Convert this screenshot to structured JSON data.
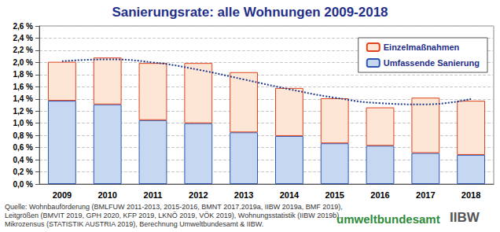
{
  "chart_data": {
    "type": "bar",
    "title": "Sanierungsrate: alle Wohnungen 2009-2018",
    "categories": [
      "2009",
      "2010",
      "2011",
      "2012",
      "2013",
      "2014",
      "2015",
      "2016",
      "2017",
      "2018"
    ],
    "series": [
      {
        "name": "Umfassende Sanierung",
        "color": "#c6d7f2",
        "values": [
          1.37,
          1.31,
          1.05,
          1.0,
          0.85,
          0.79,
          0.67,
          0.63,
          0.51,
          0.48
        ]
      },
      {
        "name": "Einzelmaßnahmen",
        "color": "#fde6d6",
        "values": [
          0.64,
          0.77,
          0.94,
          0.99,
          0.99,
          0.79,
          0.74,
          0.63,
          0.91,
          0.89
        ]
      },
      {
        "type": "line",
        "line_style": "dotted",
        "color": "#1f3a8a",
        "values": [
          2.02,
          2.05,
          2.0,
          1.88,
          1.72,
          1.56,
          1.42,
          1.33,
          1.31,
          1.4
        ]
      }
    ],
    "stacked": true,
    "ylim": [
      0,
      2.6
    ],
    "yticks": [
      {
        "value": 0,
        "label": "0,0 %"
      },
      {
        "value": 0.2,
        "label": "0,2 %"
      },
      {
        "value": 0.4,
        "label": "0,4 %"
      },
      {
        "value": 0.6,
        "label": "0,6 %"
      },
      {
        "value": 0.8,
        "label": "0,8 %"
      },
      {
        "value": 1.0,
        "label": "1,0 %"
      },
      {
        "value": 1.2,
        "label": "1,2 %"
      },
      {
        "value": 1.4,
        "label": "1,4 %"
      },
      {
        "value": 1.6,
        "label": "1,6 %"
      },
      {
        "value": 1.8,
        "label": "1,8 %"
      },
      {
        "value": 2.0,
        "label": "2,0 %"
      },
      {
        "value": 2.2,
        "label": "2,2 %"
      },
      {
        "value": 2.4,
        "label": "2,4 %"
      },
      {
        "value": 2.6,
        "label": "2,6 %"
      }
    ],
    "grid": true,
    "legend": "top-right",
    "source": [
      "Quelle: Wohnbauförderung (BMLFUW 2011-2013, 2015-2016, BMNT 2017.2019a, IIBW 2019a, BMF 2019),",
      "Leitgrößen (BMVIT 2019, GPH 2020, KFP 2019, LKNÖ 2019, VÖK 2019), Wohnungsstatistik (IIBW 2019b),",
      "Mikrozensus (STATISTIK AUSTRIA 2019), Berechnung Umweltbundesamt & IIBW."
    ],
    "logos": [
      "umweltbundesamt",
      "IIBW"
    ]
  }
}
